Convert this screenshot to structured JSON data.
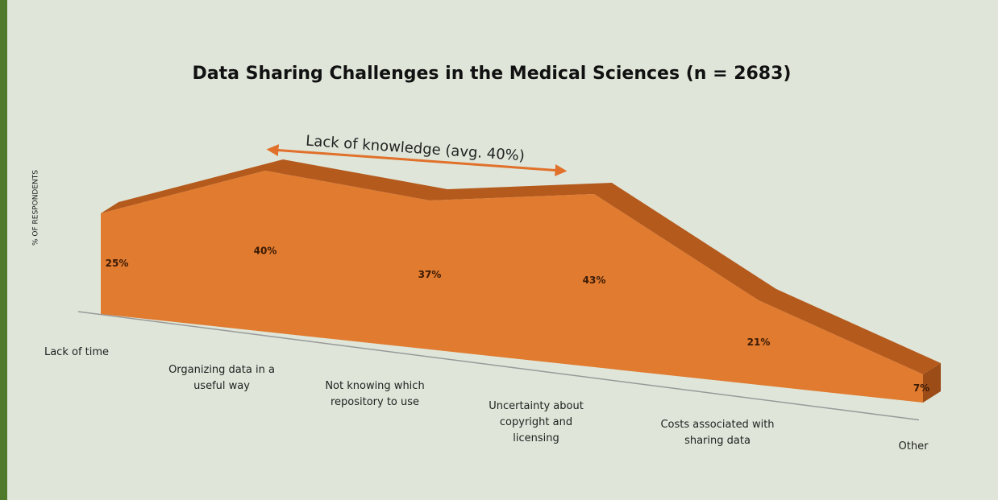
{
  "chart_data": {
    "type": "area",
    "title": "Data Sharing Challenges in the Medical Sciences (n = 2683)",
    "y_label": "% OF RESPONDENTS",
    "annotation": "Lack of knowledge (avg. 40%)",
    "categories": [
      "Lack of time",
      "Organizing data in a useful way",
      "Not knowing which repository to use",
      "Uncertainty about copyright and licensing",
      "Costs associated with sharing data",
      "Other"
    ],
    "values": [
      25,
      40,
      37,
      43,
      21,
      7
    ],
    "value_labels": [
      "25%",
      "40%",
      "37%",
      "43%",
      "21%",
      "7%"
    ],
    "color": "#e07b30"
  }
}
